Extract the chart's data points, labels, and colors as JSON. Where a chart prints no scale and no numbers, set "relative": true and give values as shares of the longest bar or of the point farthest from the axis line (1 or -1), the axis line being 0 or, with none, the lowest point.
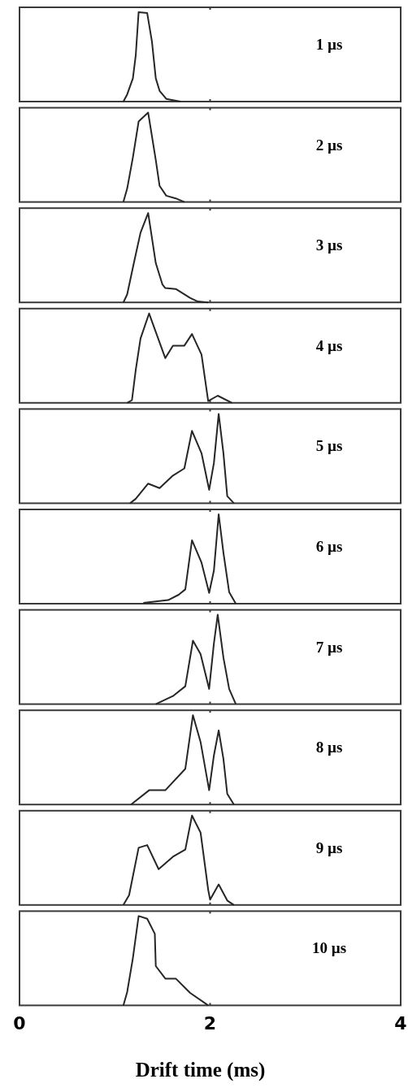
{
  "chart_data": [
    {
      "type": "line",
      "relative": true,
      "annotations": [
        "1 µs"
      ],
      "xlim": [
        0,
        4
      ],
      "xticks": [
        0,
        2,
        4
      ],
      "tick_labels": false,
      "x": [
        1.09,
        1.13,
        1.19,
        1.22,
        1.25,
        1.34,
        1.39,
        1.43,
        1.47,
        1.54,
        1.69
      ],
      "series": [
        {
          "color": "#262626",
          "values": [
            0,
            0.08,
            0.26,
            0.52,
            1,
            0.99,
            0.67,
            0.26,
            0.12,
            0.03,
            0
          ]
        }
      ]
    },
    {
      "type": "line",
      "relative": true,
      "annotations": [
        "2 µs"
      ],
      "xlim": [
        0,
        4
      ],
      "xticks": [
        0,
        2,
        4
      ],
      "tick_labels": false,
      "x": [
        1.09,
        1.13,
        1.19,
        1.25,
        1.35,
        1.43,
        1.47,
        1.54,
        1.64,
        1.73
      ],
      "series": [
        {
          "color": "#262626",
          "values": [
            0,
            0.15,
            0.5,
            0.9,
            1,
            0.47,
            0.18,
            0.07,
            0.04,
            0
          ]
        }
      ]
    },
    {
      "type": "line",
      "relative": true,
      "annotations": [
        "3 µs"
      ],
      "xlim": [
        0,
        4
      ],
      "xticks": [
        0,
        2,
        4
      ],
      "tick_labels": false,
      "x": [
        1.09,
        1.13,
        1.2,
        1.27,
        1.35,
        1.43,
        1.5,
        1.53,
        1.64,
        1.79,
        1.87,
        1.98
      ],
      "series": [
        {
          "color": "#262626",
          "values": [
            0,
            0.09,
            0.44,
            0.78,
            1,
            0.44,
            0.2,
            0.16,
            0.15,
            0.05,
            0.01,
            0
          ]
        }
      ]
    },
    {
      "type": "line",
      "relative": true,
      "annotations": [
        "4 µs"
      ],
      "xlim": [
        0,
        4
      ],
      "xticks": [
        0,
        2,
        4
      ],
      "tick_labels": false,
      "x": [
        1.13,
        1.18,
        1.22,
        1.27,
        1.36,
        1.53,
        1.61,
        1.73,
        1.81,
        1.91,
        1.98,
        2.08,
        2.23
      ],
      "series": [
        {
          "color": "#262626",
          "values": [
            0,
            0.03,
            0.37,
            0.72,
            1,
            0.5,
            0.64,
            0.64,
            0.77,
            0.54,
            0.02,
            0.08,
            0
          ]
        }
      ]
    },
    {
      "type": "line",
      "relative": true,
      "annotations": [
        "5 µs"
      ],
      "xlim": [
        0,
        4
      ],
      "xticks": [
        0,
        2,
        4
      ],
      "tick_labels": false,
      "x": [
        1.16,
        1.22,
        1.35,
        1.47,
        1.61,
        1.73,
        1.81,
        1.91,
        1.99,
        2.04,
        2.09,
        2.14,
        2.18,
        2.25
      ],
      "series": [
        {
          "color": "#262626",
          "values": [
            0,
            0.05,
            0.22,
            0.17,
            0.31,
            0.39,
            0.81,
            0.56,
            0.15,
            0.45,
            1,
            0.56,
            0.08,
            0
          ]
        }
      ]
    },
    {
      "type": "line",
      "relative": true,
      "annotations": [
        "6 µs"
      ],
      "xlim": [
        0,
        4
      ],
      "xticks": [
        0,
        2,
        4
      ],
      "tick_labels": false,
      "x": [
        1.3,
        1.56,
        1.67,
        1.74,
        1.81,
        1.91,
        1.99,
        2.04,
        2.09,
        2.14,
        2.2,
        2.27
      ],
      "series": [
        {
          "color": "#262626",
          "values": [
            0.01,
            0.04,
            0.1,
            0.16,
            0.71,
            0.46,
            0.12,
            0.37,
            1,
            0.57,
            0.13,
            0
          ]
        }
      ]
    },
    {
      "type": "line",
      "relative": true,
      "annotations": [
        "7 µs"
      ],
      "xlim": [
        0,
        4
      ],
      "xticks": [
        0,
        2,
        4
      ],
      "tick_labels": false,
      "x": [
        1.43,
        1.61,
        1.74,
        1.82,
        1.9,
        1.99,
        2.04,
        2.08,
        2.14,
        2.2,
        2.27
      ],
      "series": [
        {
          "color": "#262626",
          "values": [
            0,
            0.09,
            0.2,
            0.71,
            0.56,
            0.17,
            0.68,
            1,
            0.52,
            0.17,
            0
          ]
        }
      ]
    },
    {
      "type": "line",
      "relative": true,
      "annotations": [
        "8 µs"
      ],
      "xlim": [
        0,
        4
      ],
      "xticks": [
        0,
        2,
        4
      ],
      "tick_labels": false,
      "x": [
        1.17,
        1.36,
        1.53,
        1.74,
        1.82,
        1.9,
        1.99,
        2.04,
        2.09,
        2.14,
        2.18,
        2.25
      ],
      "series": [
        {
          "color": "#262626",
          "values": [
            0,
            0.16,
            0.16,
            0.4,
            1,
            0.7,
            0.16,
            0.55,
            0.83,
            0.51,
            0.12,
            0
          ]
        }
      ]
    },
    {
      "type": "line",
      "relative": true,
      "annotations": [
        "9 µs"
      ],
      "xlim": [
        0,
        4
      ],
      "xticks": [
        0,
        2,
        4
      ],
      "tick_labels": false,
      "x": [
        1.09,
        1.15,
        1.25,
        1.34,
        1.46,
        1.61,
        1.74,
        1.81,
        1.9,
        1.98,
        2.0,
        2.09,
        2.18,
        2.25
      ],
      "series": [
        {
          "color": "#262626",
          "values": [
            0,
            0.11,
            0.64,
            0.67,
            0.4,
            0.54,
            0.62,
            1,
            0.81,
            0.17,
            0.06,
            0.23,
            0.05,
            0
          ]
        }
      ]
    },
    {
      "type": "line",
      "relative": true,
      "annotations": [
        "10 µs"
      ],
      "xlabel": "Drift time (ms)",
      "xlim": [
        0,
        4
      ],
      "xticks": [
        0,
        2,
        4
      ],
      "tick_labels": "x",
      "x": [
        1.09,
        1.13,
        1.19,
        1.25,
        1.34,
        1.42,
        1.43,
        1.53,
        1.64,
        1.79,
        1.98
      ],
      "series": [
        {
          "color": "#262626",
          "values": [
            0,
            0.15,
            0.53,
            1,
            0.97,
            0.8,
            0.44,
            0.3,
            0.3,
            0.14,
            0
          ]
        }
      ]
    }
  ]
}
